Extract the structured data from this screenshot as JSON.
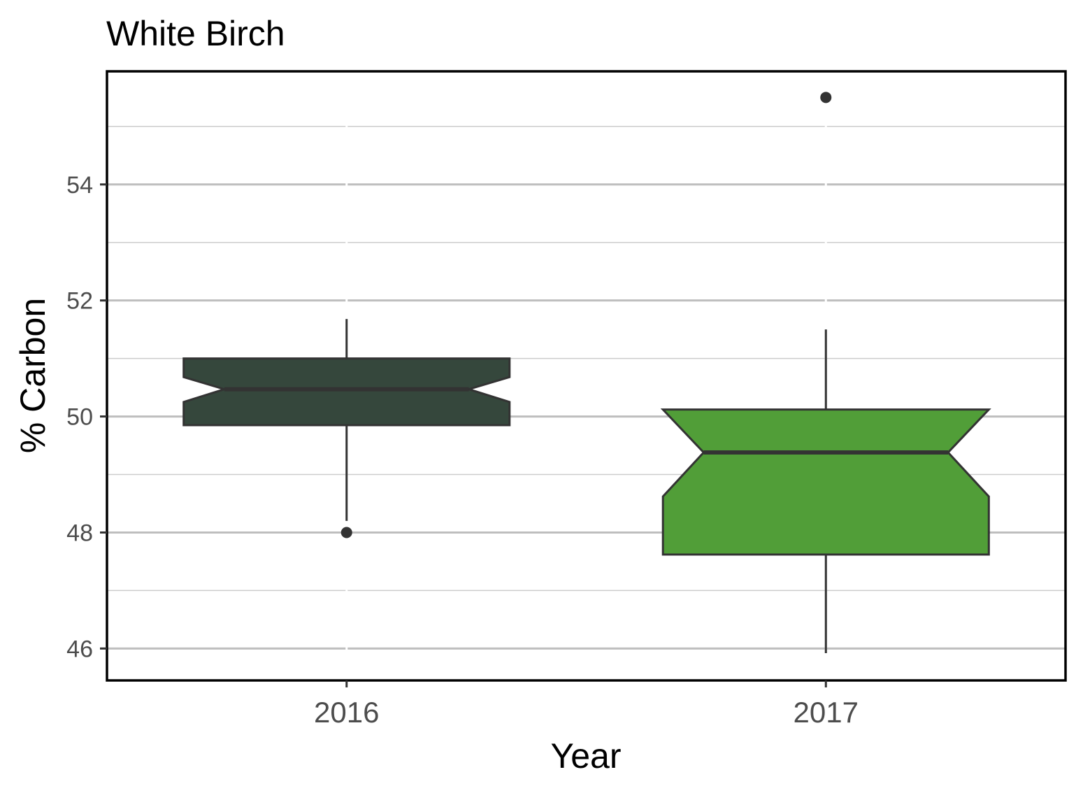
{
  "chart_data": {
    "type": "boxplot",
    "title": "White Birch",
    "xlabel": "Year",
    "ylabel": "% Carbon",
    "categories": [
      "2016",
      "2017"
    ],
    "ylim": [
      45.45,
      55.95
    ],
    "yticks": [
      "46",
      "48",
      "50",
      "52",
      "54"
    ],
    "ytick_values": [
      46,
      48,
      50,
      52,
      54
    ],
    "minor_gridlines": [
      47,
      49,
      51,
      53,
      55
    ],
    "grid": true,
    "notched": true,
    "boxes": [
      {
        "category": "2016",
        "color": "#35473c",
        "whisker_low": 48.2,
        "q1": 49.85,
        "notch_low": 50.25,
        "median": 50.47,
        "notch_high": 50.68,
        "q3": 51.0,
        "whisker_high": 51.68,
        "outliers": [
          48.0
        ]
      },
      {
        "category": "2017",
        "color": "#519e38",
        "whisker_low": 45.92,
        "q1": 47.62,
        "notch_low": 48.62,
        "median": 49.38,
        "notch_high": 50.12,
        "q3": 50.12,
        "whisker_high": 51.5,
        "outliers": [
          55.5
        ]
      }
    ]
  }
}
